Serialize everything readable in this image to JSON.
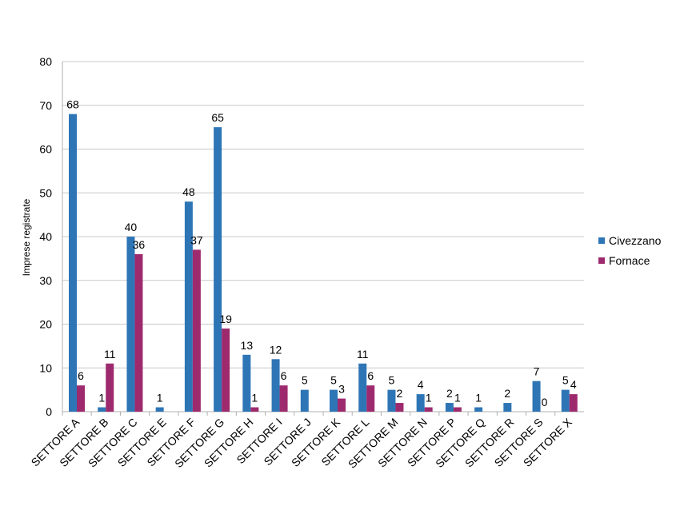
{
  "chart_data": {
    "type": "bar",
    "ylabel": "Imprese registrate",
    "ylim": [
      0,
      80
    ],
    "yticks": [
      0,
      10,
      20,
      30,
      40,
      50,
      60,
      70,
      80
    ],
    "grid": true,
    "legend_position": "right",
    "categories": [
      "SETTORE A",
      "SETTORE B",
      "SETTORE C",
      "SETTORE E",
      "SETTORE F",
      "SETTORE G",
      "SETTORE H",
      "SETTORE I",
      "SETTORE J",
      "SETTORE K",
      "SETTORE L",
      "SETTORE M",
      "SETTORE N",
      "SETTORE P",
      "SETTORE Q",
      "SETTORE R",
      "SETTORE S",
      "SETTORE X"
    ],
    "series": [
      {
        "name": "Civezzano",
        "color": "#2E75B6",
        "values": [
          68,
          1,
          40,
          1,
          48,
          65,
          13,
          12,
          5,
          5,
          11,
          5,
          4,
          2,
          1,
          2,
          7,
          5
        ],
        "labels": [
          "68",
          "1",
          "40",
          "1",
          "48",
          "65",
          "13",
          "12",
          "5",
          "5",
          "11",
          "5",
          "4",
          "2",
          "1",
          "2",
          "7",
          "5"
        ]
      },
      {
        "name": "Fornace",
        "color": "#9E2A6E",
        "values": [
          6,
          11,
          36,
          null,
          37,
          19,
          1,
          6,
          null,
          3,
          6,
          2,
          1,
          1,
          null,
          null,
          0,
          4
        ],
        "labels": [
          "6",
          "11",
          "36",
          "",
          "37",
          "19",
          "1",
          "6",
          "",
          "3",
          "6",
          "2",
          "1",
          "1",
          "",
          "",
          "0",
          "4"
        ]
      }
    ]
  }
}
